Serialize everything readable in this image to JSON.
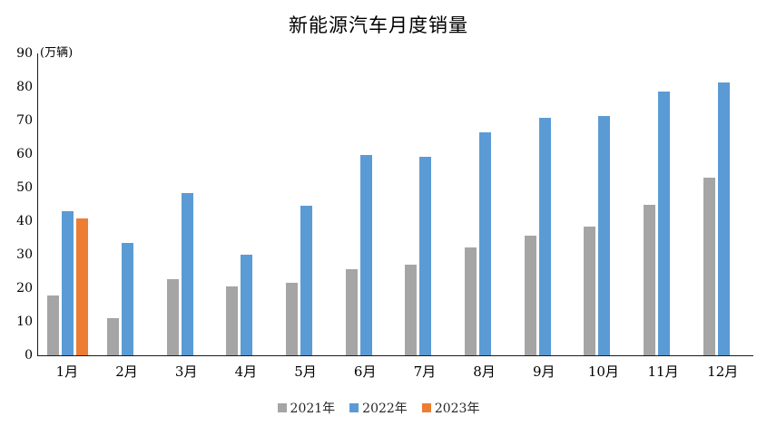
{
  "chart_data": {
    "type": "bar",
    "title": "新能源汽车月度销量",
    "unit_label": "(万辆)",
    "categories": [
      "1月",
      "2月",
      "3月",
      "4月",
      "5月",
      "6月",
      "7月",
      "8月",
      "9月",
      "10月",
      "11月",
      "12月"
    ],
    "series": [
      {
        "name": "2021年",
        "color": "#A5A5A5",
        "values": [
          17.9,
          11.0,
          22.6,
          20.6,
          21.7,
          25.6,
          27.1,
          32.1,
          35.7,
          38.3,
          45.0,
          53.1
        ]
      },
      {
        "name": "2022年",
        "color": "#5B9BD5",
        "values": [
          43.1,
          33.4,
          48.4,
          29.9,
          44.7,
          59.6,
          59.3,
          66.6,
          70.8,
          71.4,
          78.6,
          81.4
        ]
      },
      {
        "name": "2023年",
        "color": "#ED7D31",
        "values": [
          40.8,
          null,
          null,
          null,
          null,
          null,
          null,
          null,
          null,
          null,
          null,
          null
        ]
      }
    ],
    "ylim": [
      0,
      90
    ],
    "ytick_step": 10,
    "grid": false,
    "legend_position": "bottom",
    "axis_color": "#1a1a1a"
  }
}
